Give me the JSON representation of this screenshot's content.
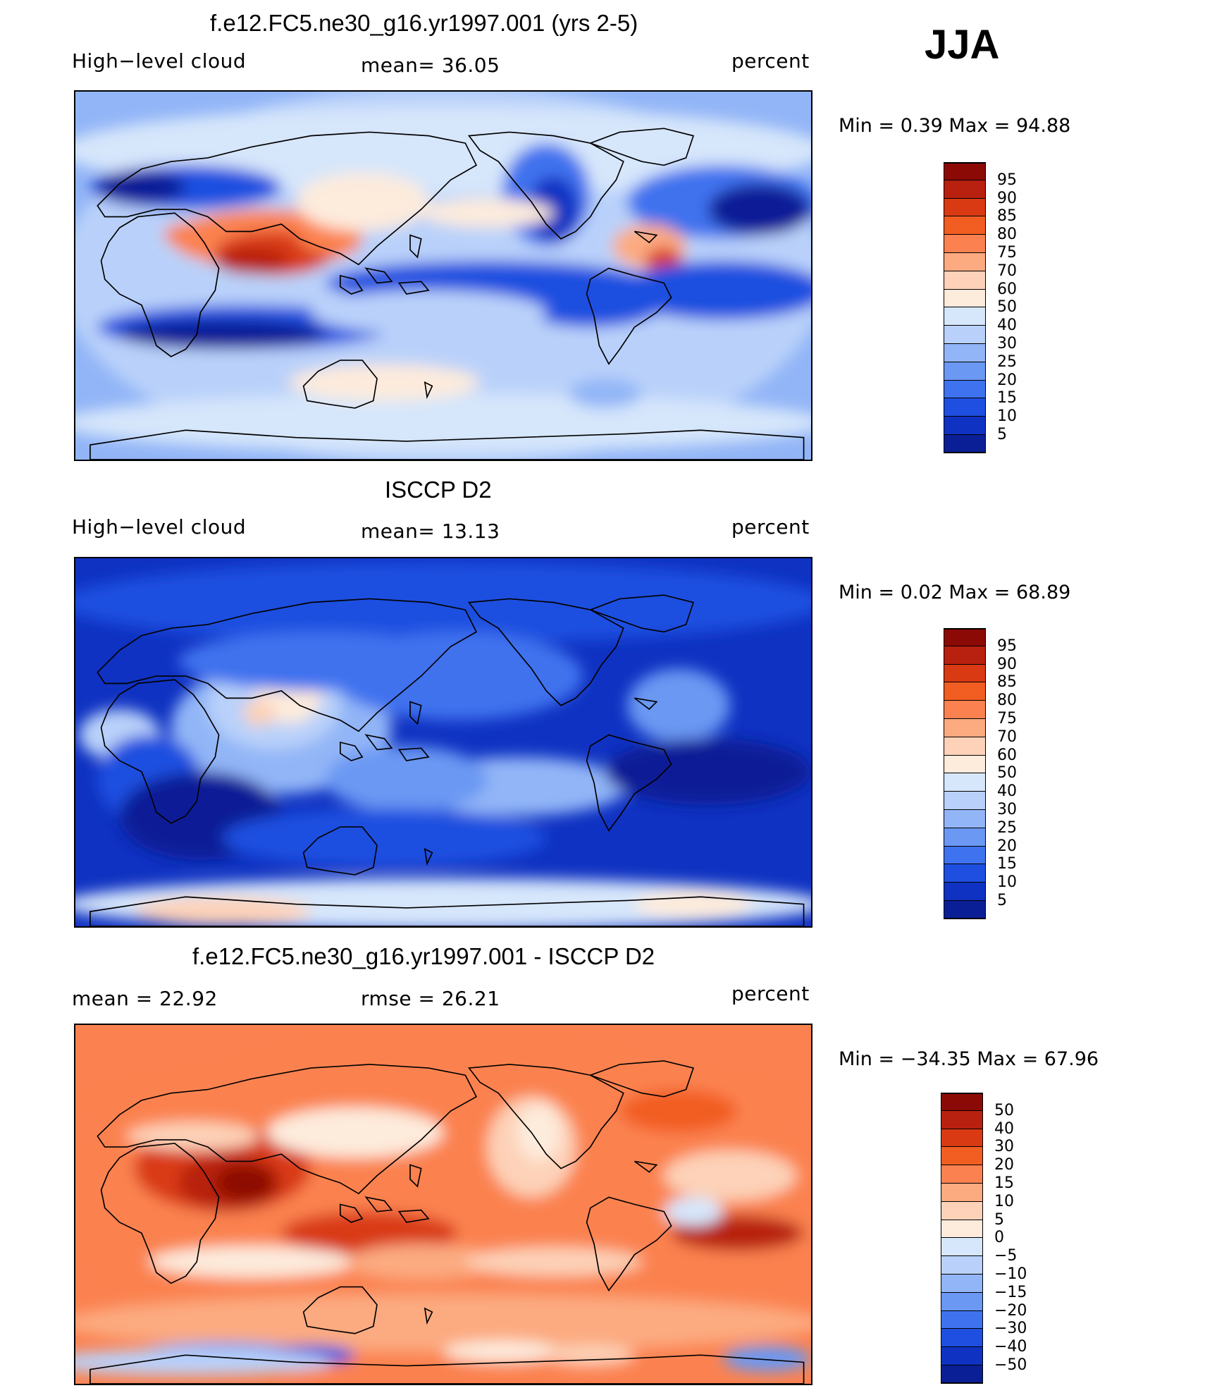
{
  "season": "JJA",
  "panels": [
    {
      "title": "f.e12.FC5.ne30_g16.yr1997.001 (yrs 2-5)",
      "left_label": "High−level cloud",
      "center_label": "mean=   36.05",
      "right_label": "percent",
      "minmax": "Min =     0.39 Max =    94.88",
      "levels": [
        "95",
        "90",
        "85",
        "80",
        "75",
        "70",
        "60",
        "50",
        "40",
        "30",
        "25",
        "20",
        "15",
        "10",
        "5"
      ],
      "colors": [
        "#8c0a06",
        "#b8200f",
        "#d93a14",
        "#f25d22",
        "#fb8250",
        "#fcaa80",
        "#fdd2b8",
        "#fdebdc",
        "#d6e6fb",
        "#b9d1fa",
        "#92b5f7",
        "#6a98f3",
        "#3f72ee",
        "#1e4fe0",
        "#0f32c2",
        "#0a1f96"
      ],
      "field": "model"
    },
    {
      "title": "ISCCP D2",
      "left_label": "High−level cloud",
      "center_label": "mean=   13.13",
      "right_label": "percent",
      "minmax": "Min =     0.02 Max =    68.89",
      "levels": [
        "95",
        "90",
        "85",
        "80",
        "75",
        "70",
        "60",
        "50",
        "40",
        "30",
        "25",
        "20",
        "15",
        "10",
        "5"
      ],
      "colors": [
        "#8c0a06",
        "#b8200f",
        "#d93a14",
        "#f25d22",
        "#fb8250",
        "#fcaa80",
        "#fdd2b8",
        "#fdebdc",
        "#d6e6fb",
        "#b9d1fa",
        "#92b5f7",
        "#6a98f3",
        "#3f72ee",
        "#1e4fe0",
        "#0f32c2",
        "#0a1f96"
      ],
      "field": "obs"
    },
    {
      "title": "f.e12.FC5.ne30_g16.yr1997.001 - ISCCP D2",
      "left_label": "mean =    22.92",
      "center_label": "rmse =    26.21",
      "right_label": "percent",
      "minmax": "Min = −34.35 Max =    67.96",
      "levels": [
        "50",
        "40",
        "30",
        "20",
        "15",
        "10",
        "5",
        "0",
        "−5",
        "−10",
        "−15",
        "−20",
        "−30",
        "−40",
        "−50"
      ],
      "colors": [
        "#8c0a06",
        "#b8200f",
        "#d93a14",
        "#f25d22",
        "#fb8250",
        "#fcaa80",
        "#fdd2b8",
        "#fdebdc",
        "#d6e6fb",
        "#b9d1fa",
        "#92b5f7",
        "#6a98f3",
        "#3f72ee",
        "#1e4fe0",
        "#0f32c2",
        "#0a1f96"
      ],
      "field": "diff"
    }
  ]
}
